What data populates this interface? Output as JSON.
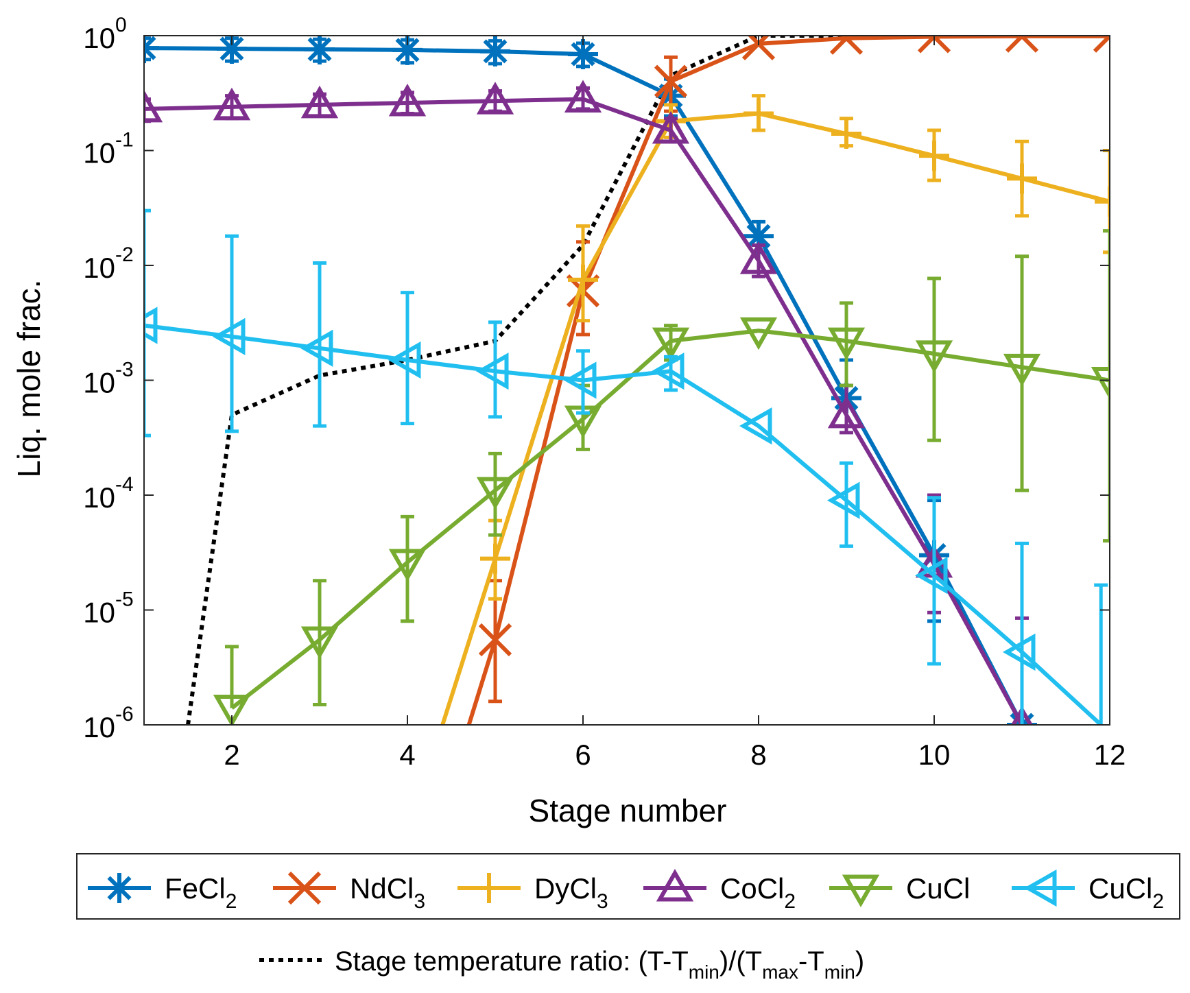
{
  "chart_data": {
    "type": "line",
    "title": "",
    "xlabel": "Stage number",
    "ylabel": "Liq. mole frac.",
    "xlim": [
      1,
      12
    ],
    "ylim": [
      1e-06,
      1
    ],
    "yscale": "log",
    "grid": false,
    "x_ticks": [
      "2",
      "4",
      "6",
      "8",
      "10",
      "12"
    ],
    "y_ticks": [
      {
        "base": "10",
        "exp": "0"
      },
      {
        "base": "10",
        "exp": "-1"
      },
      {
        "base": "10",
        "exp": "-2"
      },
      {
        "base": "10",
        "exp": "-3"
      },
      {
        "base": "10",
        "exp": "-4"
      },
      {
        "base": "10",
        "exp": "-5"
      },
      {
        "base": "10",
        "exp": "-6"
      }
    ],
    "legend_position": "bottom",
    "series": [
      {
        "name": "FeCl",
        "sub": "2",
        "color": "#0072BD",
        "marker": "asterisk",
        "x": [
          1,
          2,
          3,
          4,
          5,
          6,
          7,
          8,
          9,
          10,
          11
        ],
        "y": [
          0.78,
          0.77,
          0.76,
          0.75,
          0.73,
          0.69,
          0.3,
          0.018,
          0.0007,
          3e-05,
          1e-06
        ],
        "err_lo": [
          0.62,
          0.6,
          0.6,
          0.58,
          0.57,
          0.54,
          0.2,
          0.013,
          0.0004,
          8e-06,
          null
        ],
        "err_hi": [
          0.95,
          0.95,
          0.93,
          0.92,
          0.9,
          0.86,
          0.42,
          0.024,
          0.0015,
          9e-05,
          null
        ]
      },
      {
        "name": "NdCl",
        "sub": "3",
        "color": "#D95319",
        "marker": "x",
        "x": [
          4.7,
          5,
          6,
          7,
          8,
          9,
          10,
          11,
          12
        ],
        "y": [
          1e-06,
          5.5e-06,
          0.006,
          0.4,
          0.85,
          0.95,
          0.98,
          0.99,
          0.99
        ],
        "err_lo": [
          null,
          1.6e-06,
          0.0025,
          0.22,
          null,
          null,
          null,
          null,
          null
        ],
        "err_hi": [
          null,
          1.8e-05,
          0.016,
          0.65,
          null,
          null,
          null,
          null,
          null
        ]
      },
      {
        "name": "DyCl",
        "sub": "3",
        "color": "#EDB120",
        "marker": "plus",
        "x": [
          4.4,
          5,
          6,
          7,
          8,
          9,
          10,
          11,
          12
        ],
        "y": [
          1e-06,
          2.8e-05,
          0.0075,
          0.18,
          0.21,
          0.14,
          0.09,
          0.057,
          0.036
        ],
        "err_lo": [
          null,
          1.25e-05,
          0.0033,
          0.13,
          0.15,
          0.11,
          0.055,
          0.027,
          0.013
        ],
        "err_hi": [
          null,
          6e-05,
          0.022,
          0.25,
          0.3,
          0.19,
          0.15,
          0.12,
          0.1
        ]
      },
      {
        "name": "CoCl",
        "sub": "2",
        "color": "#7E2F8E",
        "marker": "triangle-up",
        "x": [
          1,
          2,
          3,
          4,
          5,
          6,
          7,
          8,
          9,
          10,
          11
        ],
        "y": [
          0.23,
          0.24,
          0.25,
          0.26,
          0.27,
          0.28,
          0.15,
          0.011,
          0.0005,
          2.5e-05,
          1e-06
        ],
        "err_lo": [
          0.18,
          0.19,
          0.2,
          0.21,
          0.22,
          0.23,
          0.12,
          0.008,
          0.00035,
          9.5e-06,
          9e-07
        ],
        "err_hi": [
          0.28,
          0.3,
          0.31,
          0.32,
          0.33,
          0.35,
          0.19,
          0.015,
          0.0009,
          0.0001,
          8.5e-06
        ]
      },
      {
        "name": "CuCl",
        "sub": "",
        "color": "#77AC30",
        "marker": "triangle-down",
        "x": [
          2,
          3,
          4,
          5,
          6,
          7,
          8,
          9,
          10,
          11,
          12
        ],
        "y": [
          1.4e-06,
          5.5e-06,
          2.6e-05,
          0.00011,
          0.00046,
          0.0022,
          0.0027,
          0.0022,
          0.0017,
          0.0013,
          0.001
        ],
        "err_lo": [
          null,
          1.5e-06,
          8e-06,
          4.5e-05,
          0.00025,
          0.0015,
          null,
          0.0009,
          0.0003,
          0.00011,
          4e-05
        ],
        "err_hi": [
          4.8e-06,
          1.8e-05,
          6.5e-05,
          0.00023,
          0.0009,
          0.003,
          null,
          0.0047,
          0.0077,
          0.012,
          0.02
        ]
      },
      {
        "name": "CuCl",
        "sub": "2",
        "color": "#20BFF0",
        "marker": "triangle-left",
        "x": [
          1,
          2,
          3,
          4,
          5,
          6,
          7,
          8,
          9,
          10,
          11,
          11.9
        ],
        "y": [
          0.003,
          0.0024,
          0.0019,
          0.0015,
          0.0012,
          0.001,
          0.0012,
          0.0004,
          9e-05,
          2e-05,
          4.3e-06,
          1e-06
        ],
        "err_lo": [
          0.00033,
          0.00036,
          0.0004,
          0.00042,
          0.00048,
          0.00052,
          0.00082,
          null,
          3.6e-05,
          3.4e-06,
          8e-07,
          null
        ],
        "err_hi": [
          0.03,
          0.018,
          0.0105,
          0.0058,
          0.0032,
          0.0018,
          0.0016,
          null,
          0.00019,
          9.5e-05,
          3.8e-05,
          1.65e-05
        ]
      }
    ],
    "temperature_series": {
      "name": "Stage temperature ratio: (T-T",
      "sub_min": "min",
      "mid": ")/(T",
      "sub_max": "max",
      "mid2": "-T",
      "end": ")",
      "color": "#000000",
      "style": "dotted",
      "x": [
        1.5,
        2,
        3,
        4,
        5,
        6,
        7,
        8,
        9,
        10,
        11,
        12
      ],
      "y": [
        1e-06,
        0.0005,
        0.0011,
        0.0015,
        0.0022,
        0.015,
        0.45,
        1.0,
        1.0,
        1.0,
        1.0,
        1.0
      ]
    }
  }
}
